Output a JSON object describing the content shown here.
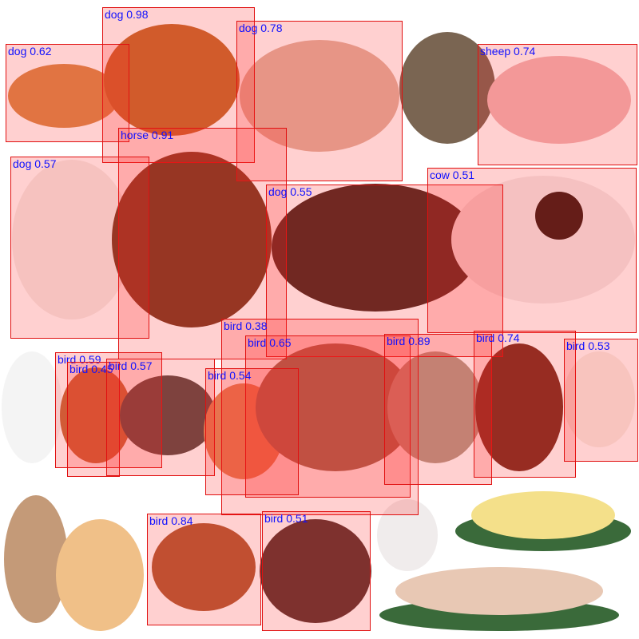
{
  "colors": {
    "box_border": "#e01010",
    "box_fill": "rgba(255,40,40,0.22)",
    "label_text": "#1010ff"
  },
  "detections": [
    {
      "label": "dog 0.98"
    },
    {
      "label": "dog 0.62"
    },
    {
      "label": "dog 0.78"
    },
    {
      "label": "sheep 0.74"
    },
    {
      "label": "horse 0.91"
    },
    {
      "label": "dog 0.57"
    },
    {
      "label": "dog 0.55"
    },
    {
      "label": "cow 0.51"
    },
    {
      "label": "bird 0.38"
    },
    {
      "label": "bird 0.65"
    },
    {
      "label": "bird 0.59"
    },
    {
      "label": "bird 0.45"
    },
    {
      "label": "bird 0.57"
    },
    {
      "label": "bird 0.54"
    },
    {
      "label": "bird 0.89"
    },
    {
      "label": "bird 0.74"
    },
    {
      "label": "bird 0.53"
    },
    {
      "label": "bird 0.84"
    },
    {
      "label": "bird 0.51"
    }
  ]
}
